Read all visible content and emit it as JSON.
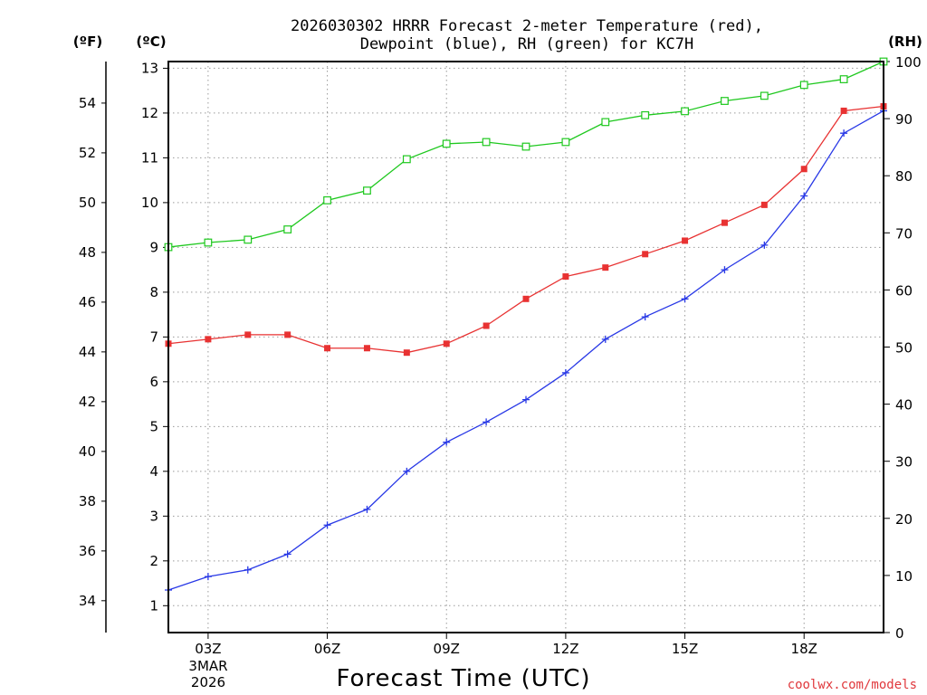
{
  "chart_data": {
    "type": "line",
    "title_line1": "2026030302 HRRR Forecast 2-meter Temperature (red),",
    "title_line2": "Dewpoint (blue), RH (green) for KC7H",
    "xlabel": "Forecast Time (UTC)",
    "credit": "coolwx.com/models",
    "units": {
      "fahrenheit": "(ºF)",
      "celsius": "(ºC)",
      "rh": "(RH)"
    },
    "x_range_hours_utc": [
      2,
      20
    ],
    "x_ticks": [
      {
        "hour": 3,
        "label": "03Z"
      },
      {
        "hour": 6,
        "label": "06Z"
      },
      {
        "hour": 9,
        "label": "09Z"
      },
      {
        "hour": 12,
        "label": "12Z"
      },
      {
        "hour": 15,
        "label": "15Z"
      },
      {
        "hour": 18,
        "label": "18Z"
      }
    ],
    "date_label": [
      "3MAR",
      "2026"
    ],
    "x_hours": [
      2,
      3,
      4,
      5,
      6,
      7,
      8,
      9,
      10,
      11,
      12,
      13,
      14,
      15,
      16,
      17,
      18,
      19,
      20
    ],
    "celsius_axis": {
      "min": 0.4,
      "max": 13.15,
      "ticks": [
        1,
        2,
        3,
        4,
        5,
        6,
        7,
        8,
        9,
        10,
        11,
        12,
        13
      ]
    },
    "fahrenheit_axis": {
      "ticks": [
        34,
        36,
        38,
        40,
        42,
        44,
        46,
        48,
        50,
        52,
        54
      ]
    },
    "rh_axis": {
      "min": 0,
      "max": 100,
      "ticks": [
        0,
        10,
        20,
        30,
        40,
        50,
        60,
        70,
        80,
        90,
        100
      ]
    },
    "series": [
      {
        "name": "Temperature",
        "units": "C",
        "color": "#e83232",
        "marker": "filled-square",
        "values": [
          6.85,
          6.95,
          7.05,
          7.05,
          6.75,
          6.75,
          6.65,
          6.85,
          7.25,
          7.85,
          8.35,
          8.55,
          8.85,
          9.15,
          9.55,
          9.95,
          10.75,
          12.05,
          12.15
        ]
      },
      {
        "name": "Dewpoint",
        "units": "C",
        "color": "#2838e6",
        "marker": "plus",
        "values": [
          1.35,
          1.65,
          1.8,
          2.15,
          2.8,
          3.15,
          4.0,
          4.65,
          5.1,
          5.6,
          6.2,
          6.95,
          7.45,
          7.85,
          8.5,
          9.05,
          10.15,
          11.55,
          12.05
        ]
      },
      {
        "name": "RH",
        "units": "%",
        "color": "#1ec81e",
        "marker": "open-square",
        "values": [
          67.5,
          68.3,
          68.8,
          70.6,
          75.7,
          77.4,
          82.9,
          85.6,
          85.9,
          85.1,
          85.9,
          89.4,
          90.6,
          91.3,
          93.1,
          94.0,
          95.9,
          96.9,
          100.0
        ]
      }
    ]
  }
}
